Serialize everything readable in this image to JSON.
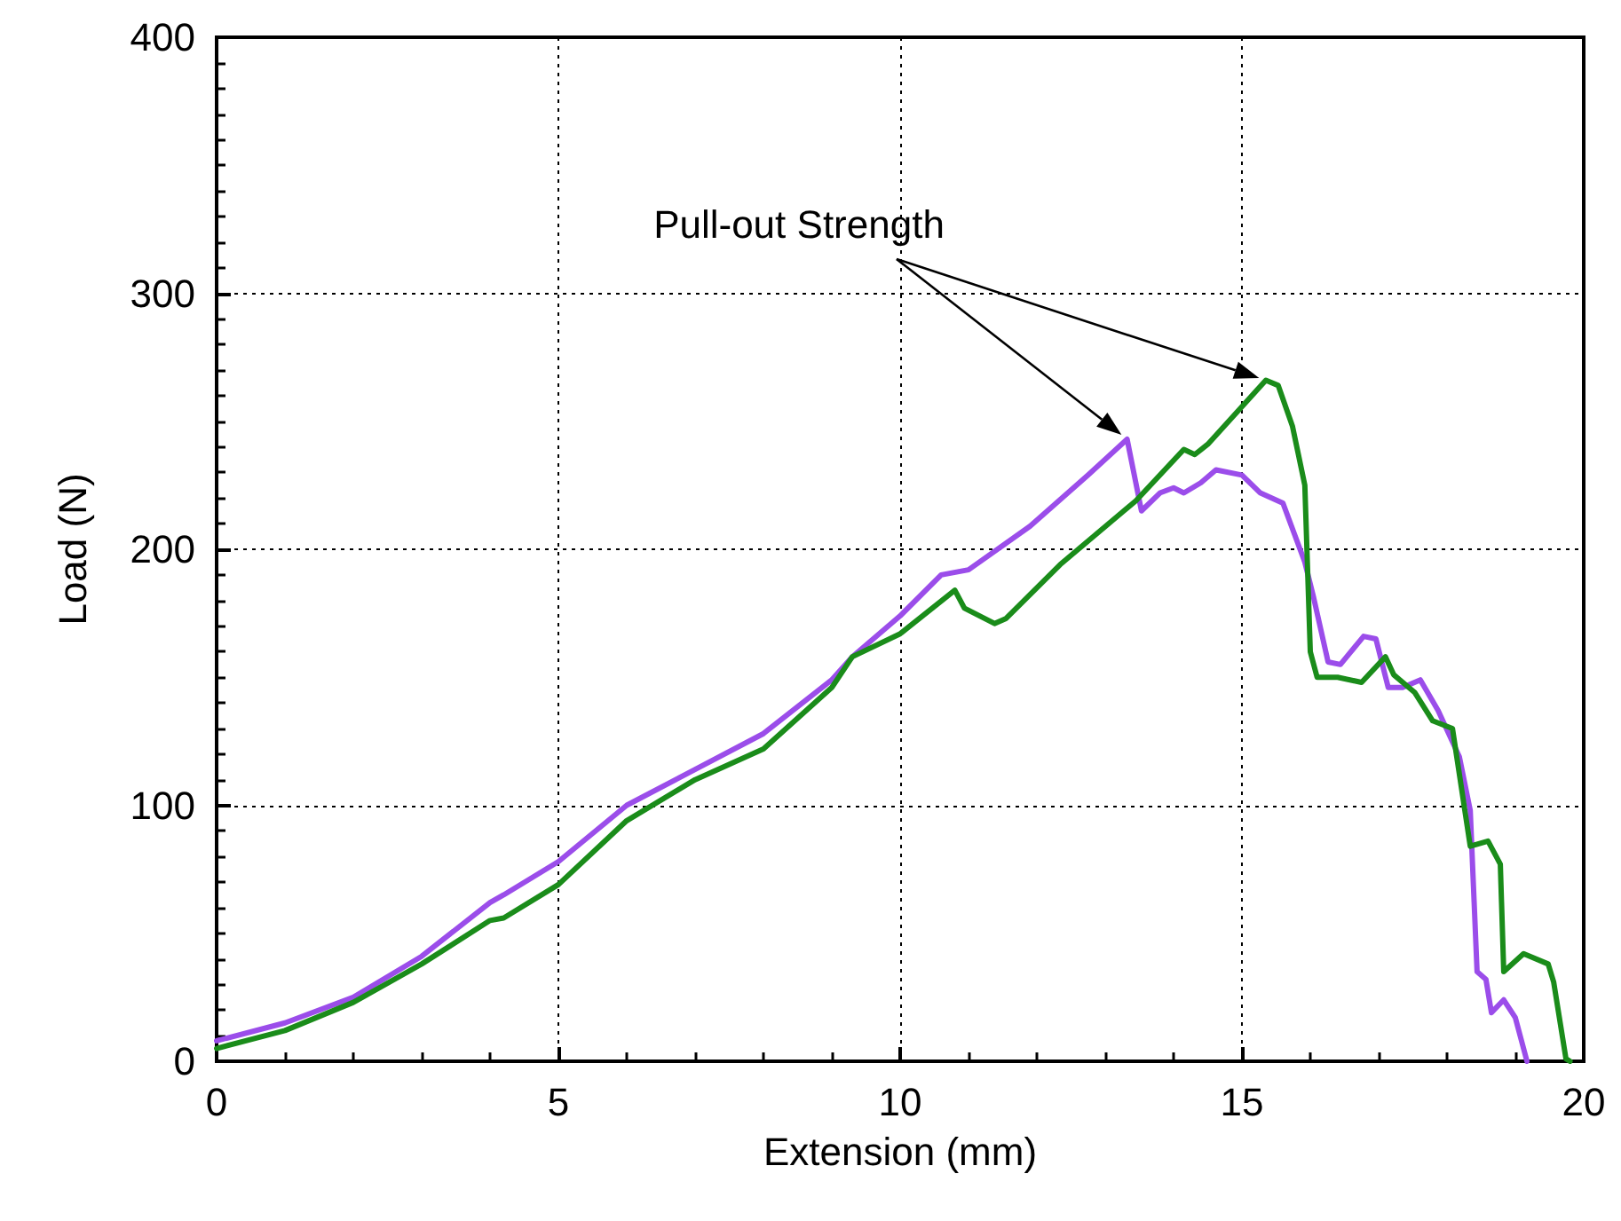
{
  "chart_data": {
    "type": "line",
    "xlabel": "Extension (mm)",
    "ylabel": "Load (N)",
    "xlim": [
      0,
      20
    ],
    "ylim": [
      0,
      400
    ],
    "xticks": [
      0,
      5,
      10,
      15,
      20
    ],
    "yticks": [
      0,
      100,
      200,
      300,
      400
    ],
    "grid": true,
    "marker": "none",
    "line_style": "solid",
    "annotations": [
      "Pull-out Strength"
    ],
    "series": [
      {
        "color": "#9b4dea",
        "x": [
          0,
          1,
          2,
          3,
          4,
          4.2,
          5,
          6,
          7,
          8,
          9,
          9.3,
          10,
          10.6,
          11,
          11.9,
          12.75,
          13.32,
          13.53,
          13.8,
          14.0,
          14.15,
          14.4,
          14.62,
          15.0,
          15.27,
          15.6,
          15.92,
          16.05,
          16.26,
          16.44,
          16.78,
          16.96,
          17.14,
          17.35,
          17.61,
          17.87,
          18.18,
          18.34,
          18.44,
          18.57,
          18.65,
          18.83,
          19.0,
          19.17
        ],
        "values": [
          8,
          15,
          25,
          41,
          62,
          65,
          78,
          100,
          114,
          128,
          149,
          158,
          174,
          190,
          192,
          209,
          229,
          243,
          215,
          222,
          224,
          222,
          226,
          231,
          229,
          222,
          218,
          195,
          181,
          156,
          155,
          166,
          165,
          146,
          146,
          149,
          137,
          119,
          98,
          35,
          32,
          19,
          24,
          17,
          0
        ]
      },
      {
        "color": "#1a8c1a",
        "x": [
          0,
          1,
          2,
          3,
          4,
          4.2,
          5,
          6,
          7,
          8,
          9,
          9.3,
          10,
          10.8,
          10.94,
          11.38,
          11.55,
          12.34,
          13.45,
          14.15,
          14.31,
          14.5,
          15.35,
          15.53,
          15.74,
          15.92,
          16.0,
          16.1,
          16.4,
          16.75,
          17.1,
          17.22,
          17.53,
          17.79,
          18.08,
          18.34,
          18.6,
          18.78,
          18.83,
          19.12,
          19.48,
          19.56,
          19.74,
          19.8
        ],
        "values": [
          5,
          12,
          23,
          38,
          55,
          56,
          69,
          94,
          110,
          122,
          146,
          158,
          167,
          184,
          177,
          171,
          173,
          194,
          219,
          239,
          237,
          241,
          266,
          264,
          248,
          225,
          160,
          150,
          150,
          148,
          158,
          151,
          144,
          133,
          130,
          84,
          86,
          77,
          35,
          42,
          38,
          31,
          1,
          0
        ]
      }
    ]
  }
}
